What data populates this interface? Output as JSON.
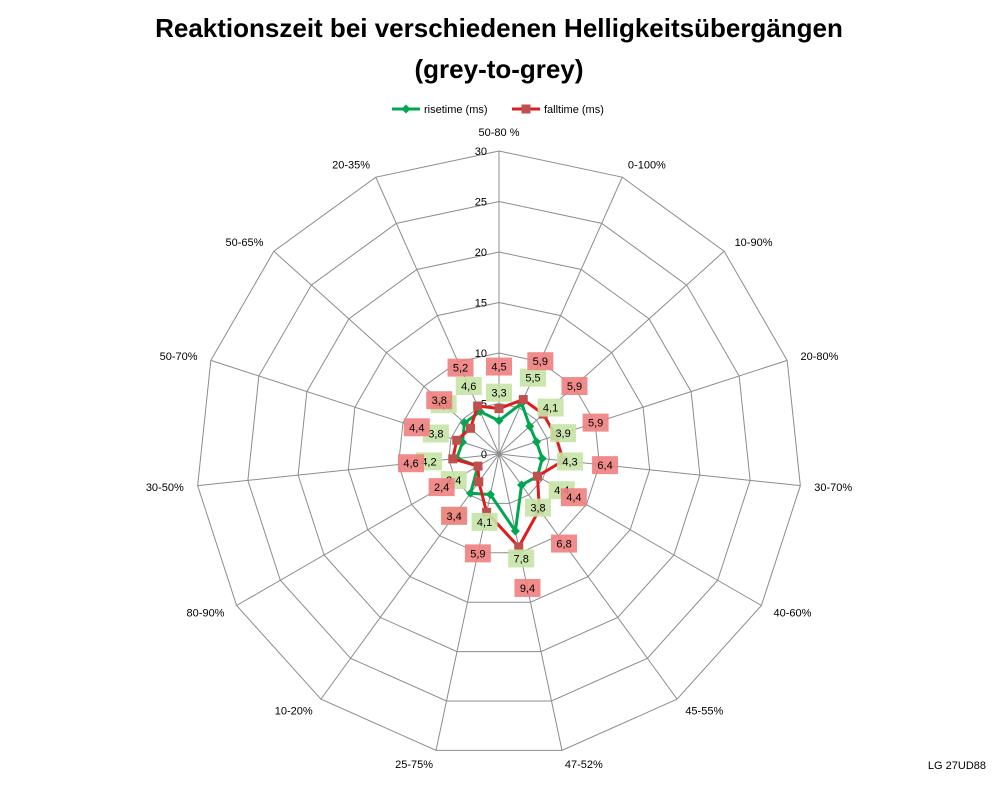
{
  "chart_data": {
    "type": "radar",
    "title": "Reaktionszeit bei verschiedenen Helligkeitsübergängen",
    "subtitle": "(grey-to-grey)",
    "categories": [
      "50-80 %",
      "0-100%",
      "10-90%",
      "20-80%",
      "30-70%",
      "40-60%",
      "45-55%",
      "47-52%",
      "25-75%",
      "10-20%",
      "80-90%",
      "30-50%",
      "50-70%",
      "50-65%",
      "20-35%"
    ],
    "radial_ticks": [
      "0",
      "5",
      "10",
      "15",
      "20",
      "25",
      "30"
    ],
    "rlim": [
      0,
      30
    ],
    "grid": true,
    "legend_position": "top",
    "series": [
      {
        "name": "risetime (ms)",
        "color": "#00a650",
        "label_bg": "#c7e3a6",
        "marker": "diamond",
        "values": [
          3.3,
          5.5,
          4.1,
          3.9,
          4.3,
          4.4,
          3.8,
          7.8,
          4.1,
          4.8,
          2.4,
          4.2,
          3.8,
          4.6,
          4.6
        ],
        "labels": [
          "3,3",
          "5,5",
          "4,1",
          "3,9",
          "4,3",
          "4,4",
          "3,8",
          "7,8",
          "4,1",
          "4,8",
          "2,4",
          "4,2",
          "3,8",
          "4,6",
          "4,6"
        ]
      },
      {
        "name": "falltime (ms)",
        "color": "#dd1e1e",
        "label_bg": "#f08080",
        "marker": "square",
        "values": [
          4.5,
          5.9,
          5.9,
          5.9,
          6.4,
          4.4,
          6.8,
          9.4,
          5.9,
          3.4,
          2.4,
          4.6,
          4.4,
          3.8,
          5.2
        ],
        "labels": [
          "4,5",
          "5,9",
          "5,9",
          "5,9",
          "6,4",
          "4,4",
          "6,8",
          "9,4",
          "5,9",
          "3,4",
          "2,4",
          "4,6",
          "4,4",
          "3,8",
          "5,2"
        ]
      }
    ]
  },
  "footer": "LG 27UD88"
}
